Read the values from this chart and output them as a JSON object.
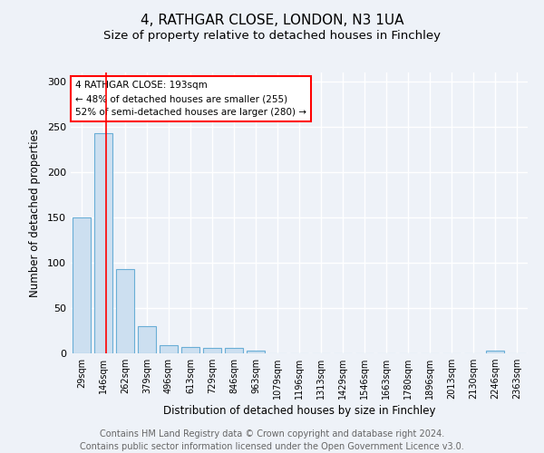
{
  "title1": "4, RATHGAR CLOSE, LONDON, N3 1UA",
  "title2": "Size of property relative to detached houses in Finchley",
  "xlabel": "Distribution of detached houses by size in Finchley",
  "ylabel": "Number of detached properties",
  "footnote": "Contains HM Land Registry data © Crown copyright and database right 2024.\nContains public sector information licensed under the Open Government Licence v3.0.",
  "categories": [
    "29sqm",
    "146sqm",
    "262sqm",
    "379sqm",
    "496sqm",
    "613sqm",
    "729sqm",
    "846sqm",
    "963sqm",
    "1079sqm",
    "1196sqm",
    "1313sqm",
    "1429sqm",
    "1546sqm",
    "1663sqm",
    "1780sqm",
    "1896sqm",
    "2013sqm",
    "2130sqm",
    "2246sqm",
    "2363sqm"
  ],
  "values": [
    150,
    243,
    93,
    30,
    9,
    7,
    6,
    6,
    3,
    0,
    0,
    0,
    0,
    0,
    0,
    0,
    0,
    0,
    0,
    3,
    0
  ],
  "bar_color": "#ccdff0",
  "bar_edge_color": "#6aaed6",
  "bar_linewidth": 0.8,
  "red_line_x": 1.13,
  "annotation_line1": "4 RATHGAR CLOSE: 193sqm",
  "annotation_line2": "← 48% of detached houses are smaller (255)",
  "annotation_line3": "52% of semi-detached houses are larger (280) →",
  "annotation_box_color": "white",
  "annotation_box_edge": "red",
  "ylim": [
    0,
    310
  ],
  "yticks": [
    0,
    50,
    100,
    150,
    200,
    250,
    300
  ],
  "background_color": "#eef2f8",
  "grid_color": "white",
  "title1_fontsize": 11,
  "title2_fontsize": 9.5,
  "axis_fontsize": 8.5,
  "tick_fontsize": 8,
  "xtick_fontsize": 7,
  "footnote_fontsize": 7
}
